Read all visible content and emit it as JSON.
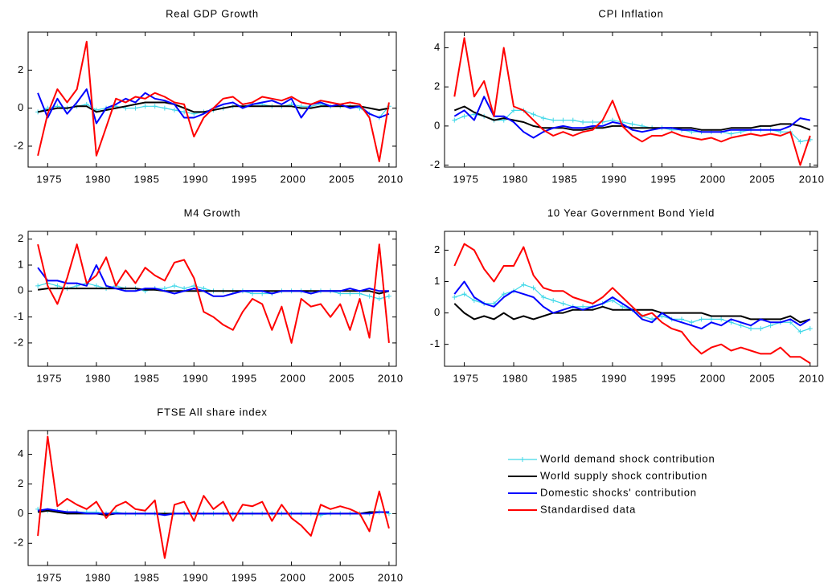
{
  "legend": [
    {
      "name": "World demand shock contribution",
      "color": "#40d8e8",
      "marker": "+"
    },
    {
      "name": "World supply shock contribution",
      "color": "#000000"
    },
    {
      "name": "Domestic shocks' contribution",
      "color": "#0000ff"
    },
    {
      "name": "Standardised data",
      "color": "#ff0000"
    }
  ],
  "chart_data": [
    {
      "type": "line",
      "title": "Real GDP Growth",
      "x": [
        1974,
        1975,
        1976,
        1977,
        1978,
        1979,
        1980,
        1981,
        1982,
        1983,
        1984,
        1985,
        1986,
        1987,
        1988,
        1989,
        1990,
        1991,
        1992,
        1993,
        1994,
        1995,
        1996,
        1997,
        1998,
        1999,
        2000,
        2001,
        2002,
        2003,
        2004,
        2005,
        2006,
        2007,
        2008,
        2009,
        2010
      ],
      "xlim": [
        1973,
        2010.75
      ],
      "xticks": [
        1975,
        1980,
        1985,
        1990,
        1995,
        2000,
        2005,
        2010
      ],
      "ylim": [
        -3.1,
        4.0
      ],
      "yticks": [
        -2,
        0,
        2
      ],
      "series": [
        {
          "values": [
            -0.2,
            0.0,
            0.1,
            0.0,
            0.1,
            0.2,
            -0.1,
            0.0,
            0.1,
            0.0,
            0.0,
            0.1,
            0.1,
            0.0,
            -0.1,
            -0.2,
            -0.3,
            -0.2,
            -0.1,
            0.0,
            0.1,
            0.1,
            0.2,
            0.2,
            0.1,
            0.1,
            0.2,
            0.1,
            0.1,
            0.2,
            0.1,
            0.1,
            0.1,
            0.0,
            -0.3,
            -0.5,
            0.1
          ]
        },
        {
          "values": [
            -0.2,
            -0.1,
            0.0,
            0.0,
            0.1,
            0.1,
            -0.2,
            -0.1,
            0.0,
            0.1,
            0.2,
            0.3,
            0.3,
            0.3,
            0.2,
            0.0,
            -0.2,
            -0.2,
            -0.1,
            0.0,
            0.1,
            0.1,
            0.1,
            0.1,
            0.1,
            0.1,
            0.1,
            0.0,
            0.0,
            0.1,
            0.1,
            0.1,
            0.1,
            0.1,
            0.0,
            -0.1,
            0.0
          ]
        },
        {
          "values": [
            0.8,
            -0.5,
            0.5,
            -0.3,
            0.3,
            1.0,
            -0.8,
            0.0,
            0.2,
            0.5,
            0.3,
            0.8,
            0.5,
            0.4,
            0.2,
            -0.5,
            -0.5,
            -0.3,
            0.0,
            0.2,
            0.3,
            0.0,
            0.2,
            0.3,
            0.4,
            0.2,
            0.5,
            -0.5,
            0.2,
            0.3,
            0.1,
            0.2,
            0.0,
            0.1,
            -0.3,
            -0.5,
            -0.3
          ]
        },
        {
          "values": [
            -2.5,
            -0.3,
            1.0,
            0.3,
            1.0,
            3.5,
            -2.5,
            -1.0,
            0.5,
            0.3,
            0.6,
            0.5,
            0.8,
            0.6,
            0.3,
            0.2,
            -1.5,
            -0.5,
            0.0,
            0.5,
            0.6,
            0.2,
            0.3,
            0.6,
            0.5,
            0.4,
            0.6,
            0.3,
            0.2,
            0.4,
            0.3,
            0.2,
            0.3,
            0.2,
            -0.5,
            -2.8,
            0.3
          ]
        }
      ]
    },
    {
      "type": "line",
      "title": "CPI Inflation",
      "x": [
        1974,
        1975,
        1976,
        1977,
        1978,
        1979,
        1980,
        1981,
        1982,
        1983,
        1984,
        1985,
        1986,
        1987,
        1988,
        1989,
        1990,
        1991,
        1992,
        1993,
        1994,
        1995,
        1996,
        1997,
        1998,
        1999,
        2000,
        2001,
        2002,
        2003,
        2004,
        2005,
        2006,
        2007,
        2008,
        2009,
        2010
      ],
      "xlim": [
        1973,
        2010.75
      ],
      "xticks": [
        1975,
        1980,
        1985,
        1990,
        1995,
        2000,
        2005,
        2010
      ],
      "ylim": [
        -2.1,
        4.8
      ],
      "yticks": [
        -2,
        0,
        2,
        4
      ],
      "series": [
        {
          "values": [
            0.3,
            0.5,
            0.6,
            0.5,
            0.3,
            0.3,
            0.8,
            0.8,
            0.6,
            0.4,
            0.3,
            0.3,
            0.3,
            0.2,
            0.2,
            0.2,
            0.3,
            0.2,
            0.1,
            0.0,
            -0.1,
            -0.1,
            -0.2,
            -0.2,
            -0.3,
            -0.3,
            -0.3,
            -0.3,
            -0.4,
            -0.3,
            -0.2,
            -0.2,
            -0.2,
            -0.3,
            -0.3,
            -0.8,
            -0.7
          ]
        },
        {
          "values": [
            0.8,
            1.0,
            0.7,
            0.5,
            0.3,
            0.4,
            0.3,
            0.2,
            0.0,
            -0.1,
            -0.1,
            -0.1,
            -0.2,
            -0.2,
            -0.1,
            -0.1,
            0.0,
            0.0,
            -0.1,
            -0.1,
            -0.1,
            -0.1,
            -0.1,
            -0.1,
            -0.1,
            -0.2,
            -0.2,
            -0.2,
            -0.1,
            -0.1,
            -0.1,
            0.0,
            0.0,
            0.1,
            0.1,
            0.0,
            -0.2
          ]
        },
        {
          "values": [
            0.5,
            0.8,
            0.3,
            1.5,
            0.5,
            0.5,
            0.2,
            -0.3,
            -0.6,
            -0.3,
            -0.1,
            0.0,
            -0.1,
            -0.1,
            0.0,
            0.0,
            0.2,
            0.1,
            -0.2,
            -0.3,
            -0.2,
            -0.1,
            -0.1,
            -0.2,
            -0.2,
            -0.3,
            -0.3,
            -0.3,
            -0.2,
            -0.2,
            -0.2,
            -0.2,
            -0.2,
            -0.2,
            0.0,
            0.4,
            0.3
          ]
        },
        {
          "values": [
            1.5,
            4.5,
            1.5,
            2.3,
            0.5,
            4.0,
            1.0,
            0.8,
            0.3,
            -0.2,
            -0.5,
            -0.3,
            -0.5,
            -0.3,
            -0.2,
            0.3,
            1.3,
            0.0,
            -0.5,
            -0.8,
            -0.5,
            -0.5,
            -0.3,
            -0.5,
            -0.6,
            -0.7,
            -0.6,
            -0.8,
            -0.6,
            -0.5,
            -0.4,
            -0.5,
            -0.4,
            -0.5,
            -0.3,
            -2.0,
            -0.5
          ]
        }
      ]
    },
    {
      "type": "line",
      "title": "M4 Growth",
      "x": [
        1974,
        1975,
        1976,
        1977,
        1978,
        1979,
        1980,
        1981,
        1982,
        1983,
        1984,
        1985,
        1986,
        1987,
        1988,
        1989,
        1990,
        1991,
        1992,
        1993,
        1994,
        1995,
        1996,
        1997,
        1998,
        1999,
        2000,
        2001,
        2002,
        2003,
        2004,
        2005,
        2006,
        2007,
        2008,
        2009,
        2010
      ],
      "xlim": [
        1973,
        2010.75
      ],
      "xticks": [
        1975,
        1980,
        1985,
        1990,
        1995,
        2000,
        2005,
        2010
      ],
      "ylim": [
        -2.9,
        2.3
      ],
      "yticks": [
        -2,
        -1,
        0,
        1,
        2
      ],
      "series": [
        {
          "values": [
            0.2,
            0.3,
            0.2,
            0.1,
            0.2,
            0.3,
            0.2,
            0.1,
            0.2,
            0.1,
            0.1,
            0.0,
            0.1,
            0.1,
            0.2,
            0.1,
            0.2,
            0.1,
            0.0,
            0.0,
            0.0,
            0.0,
            -0.1,
            -0.1,
            -0.1,
            0.0,
            0.0,
            0.0,
            0.0,
            0.0,
            0.0,
            -0.1,
            -0.1,
            -0.1,
            -0.2,
            -0.3,
            -0.2
          ]
        },
        {
          "values": [
            0.05,
            0.1,
            0.1,
            0.1,
            0.1,
            0.1,
            0.1,
            0.1,
            0.1,
            0.1,
            0.1,
            0.05,
            0.05,
            0.0,
            0.0,
            0.0,
            0.0,
            0.0,
            0.0,
            0.0,
            0.0,
            0.0,
            0.0,
            0.0,
            0.0,
            0.0,
            0.0,
            0.0,
            0.0,
            0.0,
            0.0,
            0.0,
            0.0,
            0.0,
            0.0,
            -0.1,
            0.0
          ]
        },
        {
          "values": [
            0.9,
            0.4,
            0.4,
            0.3,
            0.3,
            0.2,
            1.0,
            0.2,
            0.1,
            0.0,
            0.0,
            0.1,
            0.1,
            0.0,
            -0.1,
            0.0,
            0.1,
            0.0,
            -0.2,
            -0.2,
            -0.1,
            0.0,
            0.0,
            0.0,
            -0.1,
            0.0,
            0.0,
            0.0,
            -0.1,
            0.0,
            0.0,
            0.0,
            0.1,
            0.0,
            0.1,
            0.0,
            0.0
          ]
        },
        {
          "values": [
            1.8,
            0.2,
            -0.5,
            0.5,
            1.8,
            0.3,
            0.6,
            1.3,
            0.2,
            0.8,
            0.3,
            0.9,
            0.6,
            0.4,
            1.1,
            1.2,
            0.5,
            -0.8,
            -1.0,
            -1.3,
            -1.5,
            -0.8,
            -0.3,
            -0.5,
            -1.5,
            -0.6,
            -2.0,
            -0.3,
            -0.6,
            -0.5,
            -1.0,
            -0.5,
            -1.5,
            -0.3,
            -1.8,
            1.8,
            -2.0
          ]
        }
      ]
    },
    {
      "type": "line",
      "title": "10 Year Government Bond Yield",
      "x": [
        1974,
        1975,
        1976,
        1977,
        1978,
        1979,
        1980,
        1981,
        1982,
        1983,
        1984,
        1985,
        1986,
        1987,
        1988,
        1989,
        1990,
        1991,
        1992,
        1993,
        1994,
        1995,
        1996,
        1997,
        1998,
        1999,
        2000,
        2001,
        2002,
        2003,
        2004,
        2005,
        2006,
        2007,
        2008,
        2009,
        2010
      ],
      "xlim": [
        1973,
        2010.75
      ],
      "xticks": [
        1975,
        1980,
        1985,
        1990,
        1995,
        2000,
        2005,
        2010
      ],
      "ylim": [
        -1.7,
        2.6
      ],
      "yticks": [
        -1,
        0,
        1,
        2
      ],
      "series": [
        {
          "values": [
            0.5,
            0.6,
            0.4,
            0.3,
            0.3,
            0.6,
            0.7,
            0.9,
            0.8,
            0.5,
            0.4,
            0.3,
            0.2,
            0.2,
            0.2,
            0.3,
            0.4,
            0.2,
            0.1,
            -0.1,
            -0.2,
            -0.1,
            -0.2,
            -0.2,
            -0.3,
            -0.2,
            -0.2,
            -0.2,
            -0.3,
            -0.4,
            -0.5,
            -0.5,
            -0.4,
            -0.3,
            -0.3,
            -0.6,
            -0.5
          ]
        },
        {
          "values": [
            0.3,
            0.0,
            -0.2,
            -0.1,
            -0.2,
            0.0,
            -0.2,
            -0.1,
            -0.2,
            -0.1,
            0.0,
            0.0,
            0.1,
            0.1,
            0.1,
            0.2,
            0.1,
            0.1,
            0.1,
            0.1,
            0.1,
            0.0,
            0.0,
            0.0,
            0.0,
            0.0,
            -0.1,
            -0.1,
            -0.1,
            -0.1,
            -0.2,
            -0.2,
            -0.2,
            -0.2,
            -0.1,
            -0.3,
            -0.2
          ]
        },
        {
          "values": [
            0.6,
            1.0,
            0.5,
            0.3,
            0.2,
            0.5,
            0.7,
            0.6,
            0.5,
            0.2,
            0.0,
            0.1,
            0.2,
            0.1,
            0.2,
            0.3,
            0.5,
            0.3,
            0.1,
            -0.2,
            -0.3,
            0.0,
            -0.2,
            -0.3,
            -0.4,
            -0.5,
            -0.3,
            -0.4,
            -0.2,
            -0.3,
            -0.4,
            -0.2,
            -0.3,
            -0.3,
            -0.2,
            -0.4,
            -0.2
          ]
        },
        {
          "values": [
            1.5,
            2.2,
            2.0,
            1.4,
            1.0,
            1.5,
            1.5,
            2.1,
            1.2,
            0.8,
            0.7,
            0.7,
            0.5,
            0.4,
            0.3,
            0.5,
            0.8,
            0.5,
            0.2,
            -0.1,
            0.0,
            -0.3,
            -0.5,
            -0.6,
            -1.0,
            -1.3,
            -1.1,
            -1.0,
            -1.2,
            -1.1,
            -1.2,
            -1.3,
            -1.3,
            -1.1,
            -1.4,
            -1.4,
            -1.6
          ]
        }
      ]
    },
    {
      "type": "line",
      "title": "FTSE All share index",
      "x": [
        1974,
        1975,
        1976,
        1977,
        1978,
        1979,
        1980,
        1981,
        1982,
        1983,
        1984,
        1985,
        1986,
        1987,
        1988,
        1989,
        1990,
        1991,
        1992,
        1993,
        1994,
        1995,
        1996,
        1997,
        1998,
        1999,
        2000,
        2001,
        2002,
        2003,
        2004,
        2005,
        2006,
        2007,
        2008,
        2009,
        2010
      ],
      "xlim": [
        1973,
        2010.75
      ],
      "xticks": [
        1975,
        1980,
        1985,
        1990,
        1995,
        2000,
        2005,
        2010
      ],
      "ylim": [
        -3.5,
        5.6
      ],
      "yticks": [
        -2,
        0,
        2,
        4
      ],
      "series": [
        {
          "values": [
            0.3,
            0.2,
            0.2,
            0.1,
            0.1,
            0.1,
            0.1,
            0.0,
            0.1,
            0.0,
            0.0,
            0.0,
            0.0,
            0.0,
            0.0,
            0.0,
            0.0,
            0.0,
            0.0,
            0.0,
            0.0,
            0.0,
            0.0,
            0.0,
            0.0,
            0.0,
            0.0,
            0.0,
            0.0,
            -0.1,
            0.0,
            0.0,
            0.0,
            0.0,
            0.0,
            0.1,
            0.0
          ]
        },
        {
          "values": [
            0.1,
            0.2,
            0.1,
            0.0,
            0.0,
            0.0,
            0.0,
            -0.1,
            0.0,
            0.0,
            0.0,
            0.0,
            0.0,
            0.0,
            0.0,
            0.0,
            0.0,
            0.0,
            0.0,
            0.0,
            0.0,
            0.0,
            0.0,
            0.0,
            0.0,
            0.0,
            0.0,
            0.0,
            0.0,
            0.0,
            0.0,
            0.0,
            0.0,
            0.0,
            0.1,
            0.1,
            0.1
          ]
        },
        {
          "values": [
            0.2,
            0.3,
            0.2,
            0.1,
            0.1,
            0.0,
            0.0,
            0.0,
            0.0,
            0.0,
            0.0,
            0.0,
            0.0,
            -0.1,
            0.0,
            0.0,
            0.0,
            0.0,
            0.0,
            0.0,
            0.0,
            0.0,
            0.0,
            0.0,
            0.0,
            0.0,
            0.0,
            0.0,
            0.0,
            0.0,
            0.0,
            0.0,
            0.0,
            0.0,
            0.0,
            0.1,
            0.1
          ]
        },
        {
          "values": [
            -1.5,
            5.2,
            0.5,
            1.0,
            0.6,
            0.3,
            0.8,
            -0.3,
            0.5,
            0.8,
            0.3,
            0.2,
            0.9,
            -3.0,
            0.6,
            0.8,
            -0.5,
            1.2,
            0.3,
            0.8,
            -0.5,
            0.6,
            0.5,
            0.8,
            -0.5,
            0.6,
            -0.3,
            -0.8,
            -1.5,
            0.6,
            0.3,
            0.5,
            0.3,
            0.0,
            -1.2,
            1.5,
            -1.0
          ]
        }
      ]
    }
  ]
}
